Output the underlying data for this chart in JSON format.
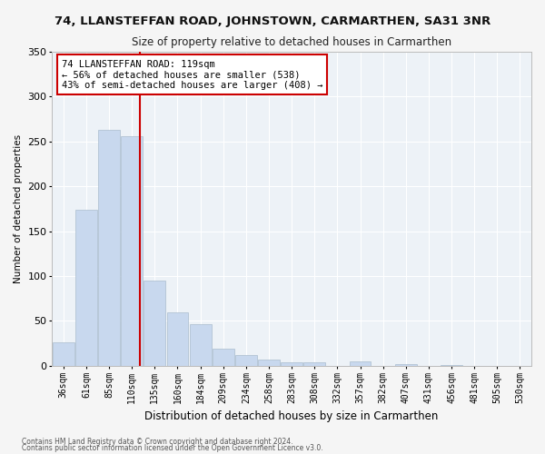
{
  "title": "74, LLANSTEFFAN ROAD, JOHNSTOWN, CARMARTHEN, SA31 3NR",
  "subtitle": "Size of property relative to detached houses in Carmarthen",
  "xlabel": "Distribution of detached houses by size in Carmarthen",
  "ylabel": "Number of detached properties",
  "bar_color": "#c8d8ee",
  "bar_edge_color": "#aabcce",
  "bg_color": "#edf2f7",
  "grid_color": "#ffffff",
  "vline_color": "#cc0000",
  "vline_x_index": 3,
  "categories": [
    "36sqm",
    "61sqm",
    "85sqm",
    "110sqm",
    "135sqm",
    "160sqm",
    "184sqm",
    "209sqm",
    "234sqm",
    "258sqm",
    "283sqm",
    "308sqm",
    "332sqm",
    "357sqm",
    "382sqm",
    "407sqm",
    "431sqm",
    "456sqm",
    "481sqm",
    "505sqm",
    "530sqm"
  ],
  "values": [
    26,
    174,
    263,
    256,
    95,
    60,
    46,
    19,
    12,
    7,
    4,
    4,
    0,
    5,
    0,
    2,
    0,
    1,
    0,
    0,
    0
  ],
  "ylim": [
    0,
    350
  ],
  "yticks": [
    0,
    50,
    100,
    150,
    200,
    250,
    300,
    350
  ],
  "annotation_text": "74 LLANSTEFFAN ROAD: 119sqm\n← 56% of detached houses are smaller (538)\n43% of semi-detached houses are larger (408) →",
  "footnote1": "Contains HM Land Registry data © Crown copyright and database right 2024.",
  "footnote2": "Contains public sector information licensed under the Open Government Licence v3.0."
}
